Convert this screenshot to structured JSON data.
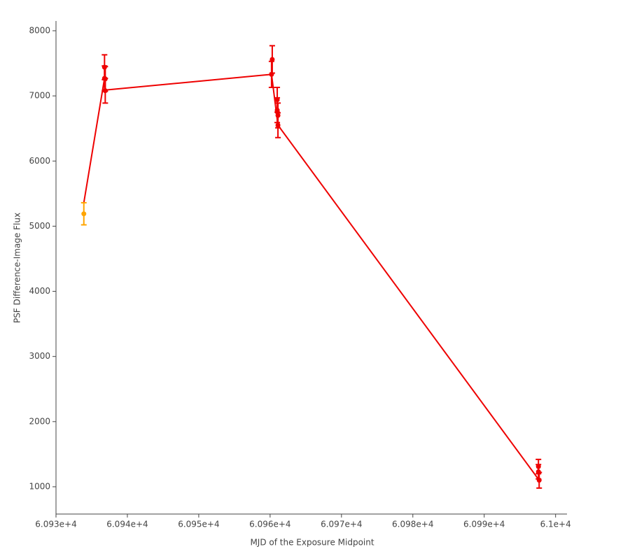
{
  "chart_data": {
    "type": "scatter",
    "x_label": "MJD of the Exposure Midpoint",
    "y_label": "PSF Difference-Image Flux",
    "xlim": [
      60930,
      61001.6
    ],
    "ylim": [
      581,
      8150
    ],
    "xticks": [
      {
        "value": 60930,
        "label": "6.093e+4"
      },
      {
        "value": 60940,
        "label": "6.094e+4"
      },
      {
        "value": 60950,
        "label": "6.095e+4"
      },
      {
        "value": 60960,
        "label": "6.096e+4"
      },
      {
        "value": 60970,
        "label": "6.097e+4"
      },
      {
        "value": 60980,
        "label": "6.098e+4"
      },
      {
        "value": 60990,
        "label": "6.099e+4"
      },
      {
        "value": 61000,
        "label": "6.1e+4"
      }
    ],
    "yticks": [
      1000,
      2000,
      3000,
      4000,
      5000,
      6000,
      7000,
      8000
    ],
    "series": [
      {
        "mode": "line",
        "color": "#ee0000",
        "x": [
          60933.9,
          60936.8,
          60936.9,
          60960.2,
          60961.1,
          60997.7
        ],
        "values": [
          5360,
          7270,
          7090,
          7330,
          6550,
          1100
        ]
      },
      {
        "mode": "markers",
        "color": "#ffa500",
        "x": [
          60933.9
        ],
        "values": [
          5190
        ],
        "errors": [
          170
        ]
      },
      {
        "mode": "markers",
        "color": "#ee0000",
        "x": [
          60936.8,
          60936.8,
          60936.9,
          60936.9,
          60960.2,
          60960.3,
          60961.0,
          60961.0,
          60961.1,
          60961.1,
          60997.6,
          60997.6,
          60997.7
        ],
        "values": [
          7440,
          7270,
          7260,
          7080,
          7330,
          7560,
          6940,
          6780,
          6700,
          6550,
          1310,
          1230,
          1100
        ],
        "errors": [
          190,
          190,
          190,
          190,
          200,
          210,
          190,
          190,
          190,
          190,
          110,
          110,
          120
        ]
      }
    ]
  }
}
